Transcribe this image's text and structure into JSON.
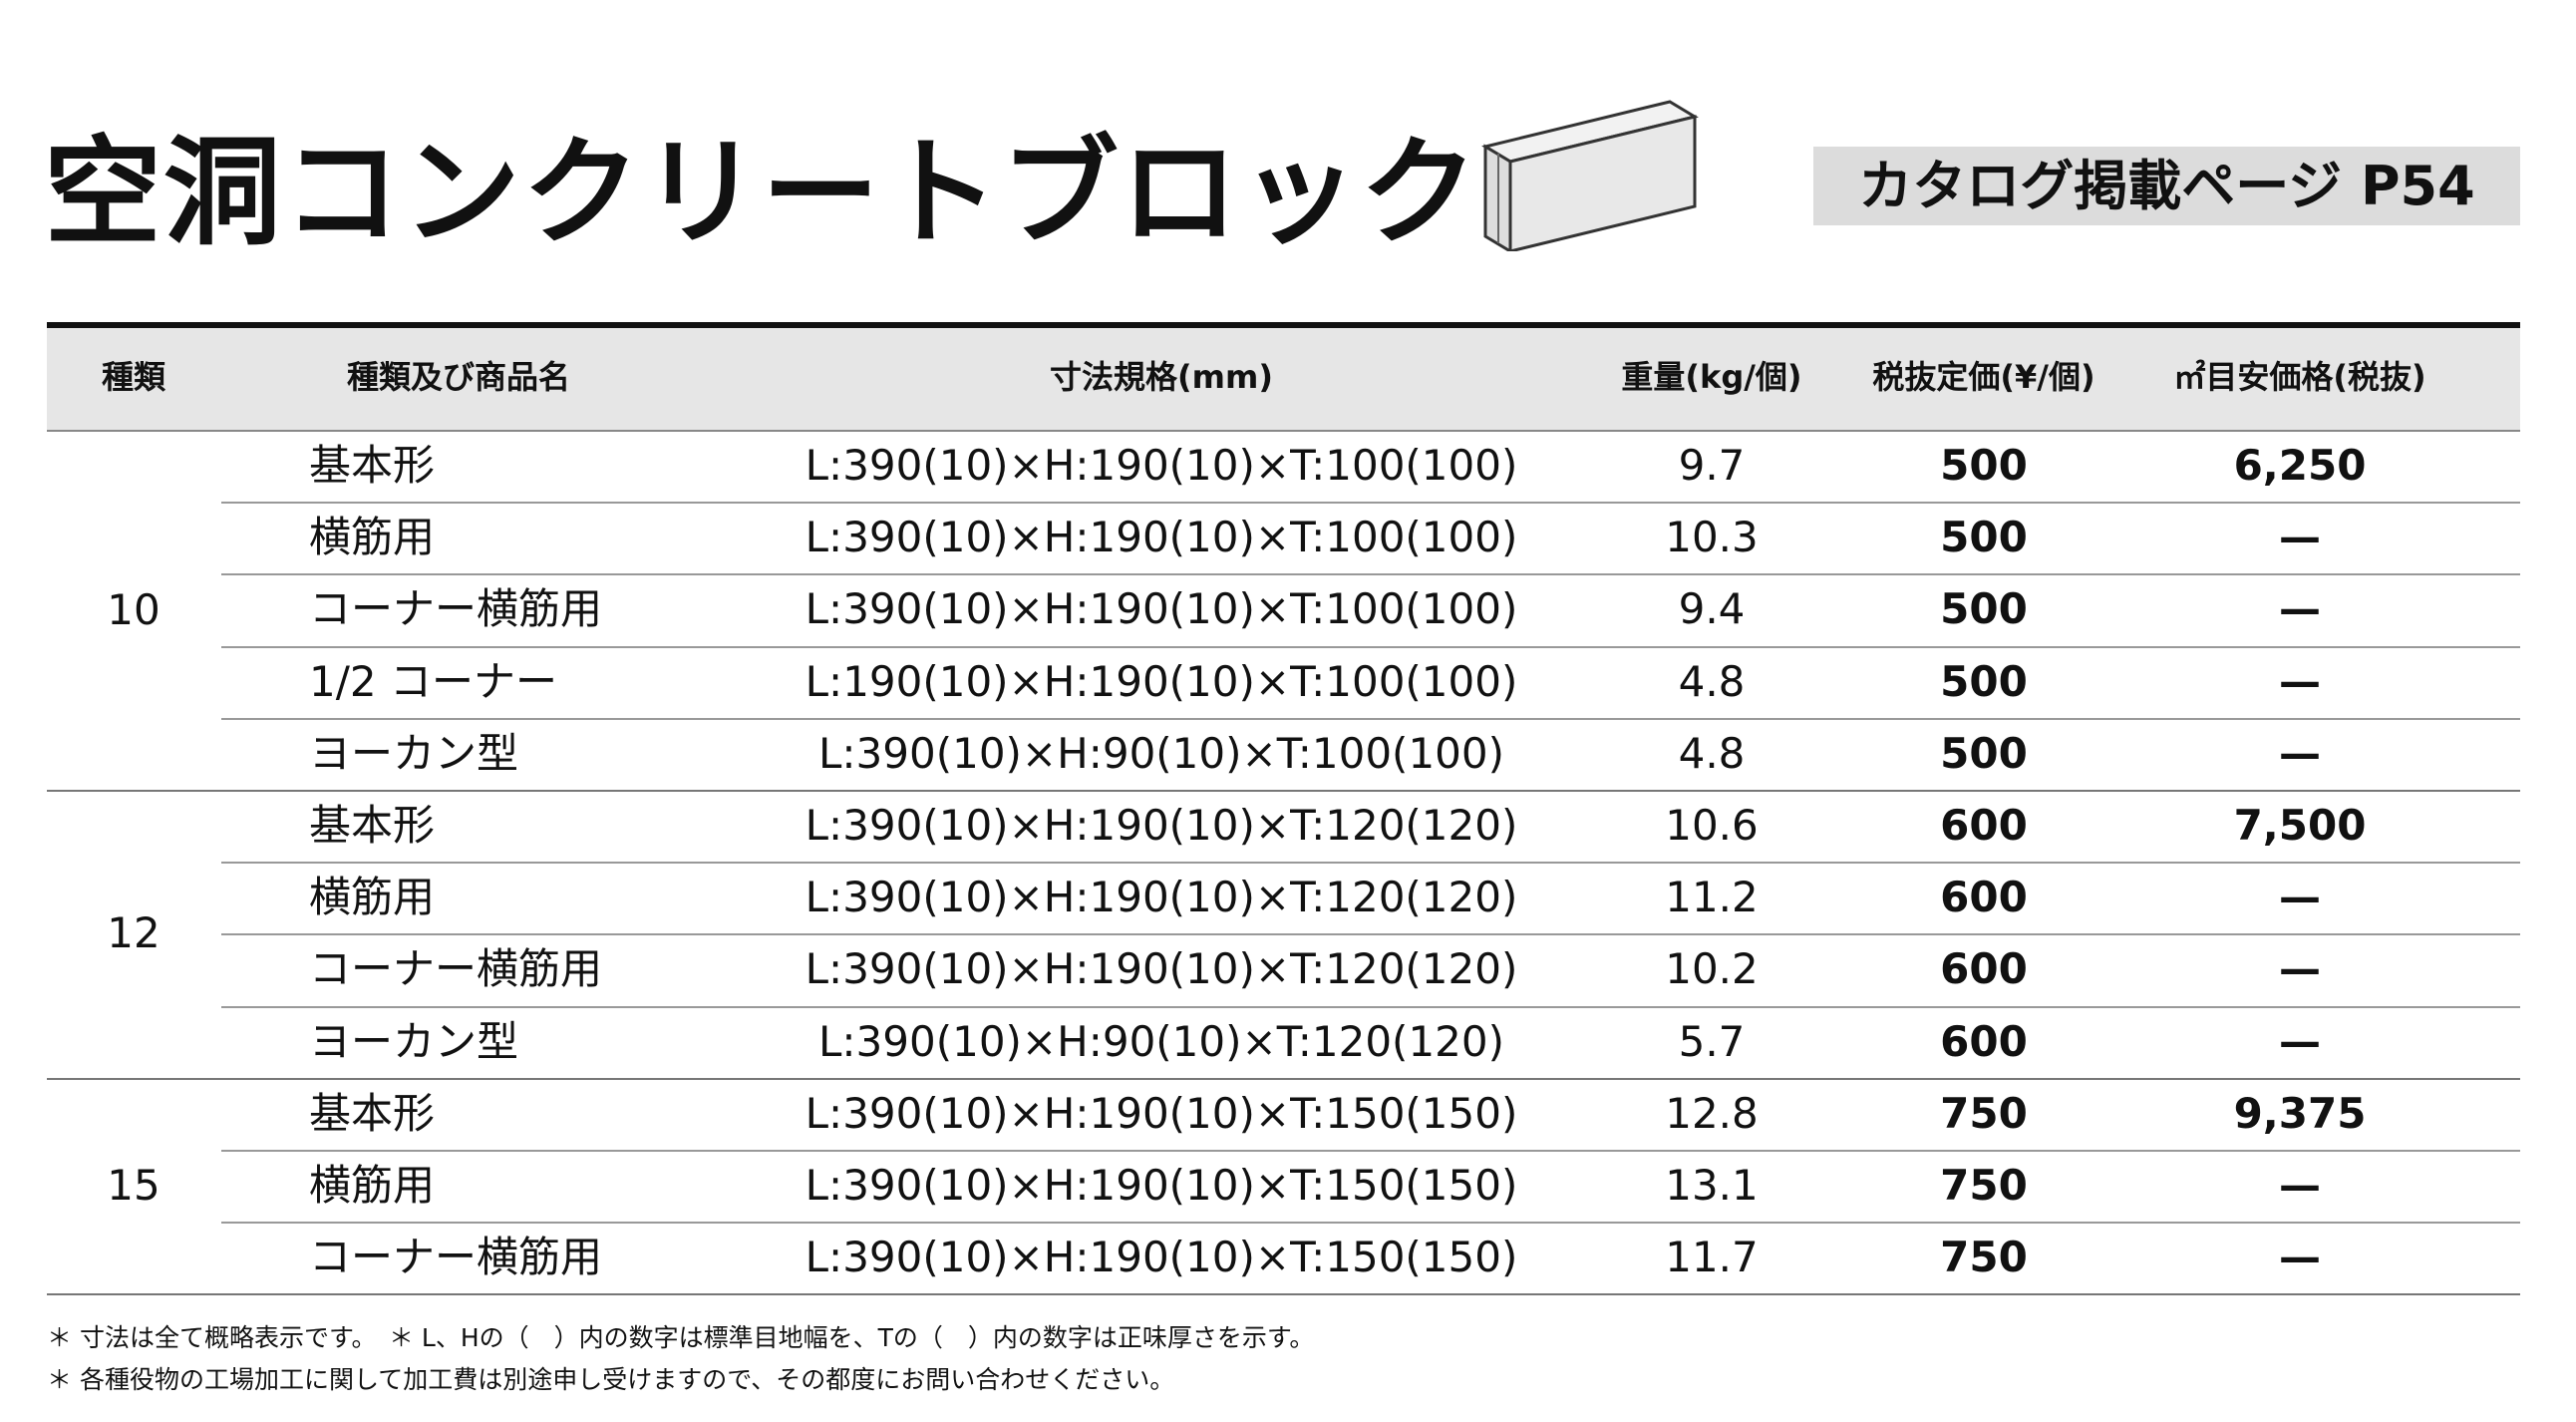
{
  "header": {
    "title": "空洞コンクリートブロック",
    "catalog": "カタログ掲載ページ P54"
  },
  "table": {
    "columns": [
      "種類",
      "種類及び商品名",
      "寸法規格(mm)",
      "重量(kg/個)",
      "税抜定価(¥/個)",
      "㎡目安価格(税抜)"
    ],
    "groups": [
      {
        "type": "10",
        "rows": [
          [
            "基本形",
            "L:390(10)×H:190(10)×T:100(100)",
            "9.7",
            "500",
            "6,250"
          ],
          [
            "横筋用",
            "L:390(10)×H:190(10)×T:100(100)",
            "10.3",
            "500",
            "—"
          ],
          [
            "コーナー横筋用",
            "L:390(10)×H:190(10)×T:100(100)",
            "9.4",
            "500",
            "—"
          ],
          [
            "1/2 コーナー",
            "L:190(10)×H:190(10)×T:100(100)",
            "4.8",
            "500",
            "—"
          ],
          [
            "ヨーカン型",
            "L:390(10)×H:90(10)×T:100(100)",
            "4.8",
            "500",
            "—"
          ]
        ]
      },
      {
        "type": "12",
        "rows": [
          [
            "基本形",
            "L:390(10)×H:190(10)×T:120(120)",
            "10.6",
            "600",
            "7,500"
          ],
          [
            "横筋用",
            "L:390(10)×H:190(10)×T:120(120)",
            "11.2",
            "600",
            "—"
          ],
          [
            "コーナー横筋用",
            "L:390(10)×H:190(10)×T:120(120)",
            "10.2",
            "600",
            "—"
          ],
          [
            "ヨーカン型",
            "L:390(10)×H:90(10)×T:120(120)",
            "5.7",
            "600",
            "—"
          ]
        ]
      },
      {
        "type": "15",
        "rows": [
          [
            "基本形",
            "L:390(10)×H:190(10)×T:150(150)",
            "12.8",
            "750",
            "9,375"
          ],
          [
            "横筋用",
            "L:390(10)×H:190(10)×T:150(150)",
            "13.1",
            "750",
            "—"
          ],
          [
            "コーナー横筋用",
            "L:390(10)×H:190(10)×T:150(150)",
            "11.7",
            "750",
            "—"
          ]
        ]
      }
    ]
  },
  "notes": [
    "＊ 寸法は全て概略表示です。　＊ L、Hの（　）内の数字は標準目地幅を、Tの（　）内の数字は正味厚さを示す。",
    "＊ 各種役物の工場加工に関して加工費は別途申し受けますので、その都度にお問い合わせください。"
  ]
}
